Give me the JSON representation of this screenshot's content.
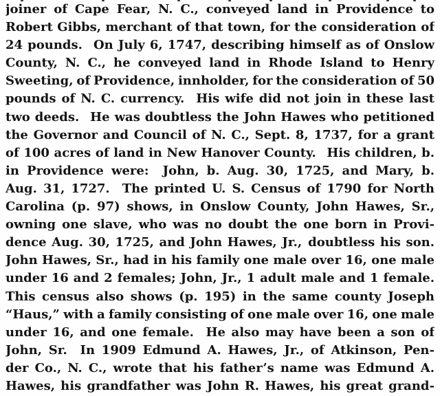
{
  "document": {
    "background_color": "#fefefe",
    "text_color": "#141414",
    "lines": [
      "joiner of Cape Fear, N. C., conveyed land in Providence to",
      "Robert Gibbs, merchant of that town, for the consideration of",
      "24 pounds.  On July 6, 1747, describing himself as of Onslow",
      "County, N. C., he conveyed land in Rhode Island to Henry",
      "Sweeting, of Providence, innholder, for the consideration of 50",
      "pounds of N. C. currency.  His wife did not join in these last",
      "two deeds.  He was doubtless the John Hawes who petitioned",
      "the Governor and Council of N. C., Sept. 8, 1737, for a grant",
      "of 100 acres of land in New Hanover County.  His children, b.",
      "in Providence were:  John, b. Aug. 30, 1725, and Mary, b.",
      "Aug. 31, 1727.  The printed U. S. Census of 1790 for North",
      "Carolina (p. 97) shows, in Onslow County, John Hawes, Sr.,",
      "owning one slave, who was no doubt the one born in Provi-",
      "dence Aug. 30, 1725, and John Hawes, Jr., doubtless his son.",
      "John Hawes, Sr., had in his family one male over 16, one male",
      "under 16 and 2 females; John, Jr., 1 adult male and 1 female.",
      "This census also shows (p. 195) in the same county Joseph",
      "“Haus,” with a family consisting of one male over 16, one male",
      "under 16, and one female.  He also may have been a son of",
      "John, Sr.  In 1909 Edmund A. Hawes, Jr., of Atkinson, Pen-",
      "der Co., N. C., wrote that his father’s name was Edmund A.",
      "Hawes, his grandfather was John R. Hawes, his great grand-"
    ]
  }
}
